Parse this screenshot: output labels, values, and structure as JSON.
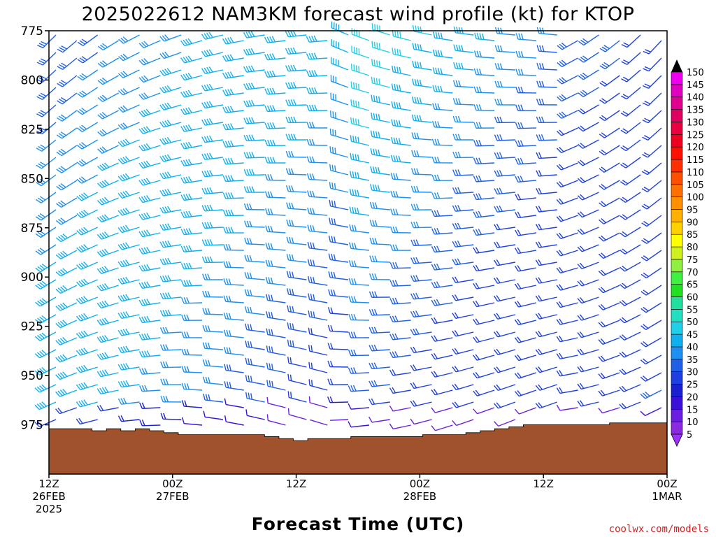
{
  "chart_data": {
    "type": "wind-barb profile",
    "title": "2025022612 NAM3KM forecast wind profile (kt) for KTOP",
    "xlabel": "Forecast Time (UTC)",
    "y_tick_labels": [
      "775",
      "800",
      "825",
      "850",
      "875",
      "900",
      "925",
      "950",
      "975"
    ],
    "ylim": [
      775,
      1000
    ],
    "y_axis": "pressure (hPa), increasing downward",
    "x_ticks": [
      {
        "hour": 0,
        "line1": "12Z",
        "line2": "26FEB",
        "line3": "2025"
      },
      {
        "hour": 12,
        "line1": "00Z",
        "line2": "27FEB",
        "line3": ""
      },
      {
        "hour": 24,
        "line1": "12Z",
        "line2": "",
        "line3": ""
      },
      {
        "hour": 36,
        "line1": "00Z",
        "line2": "28FEB",
        "line3": ""
      },
      {
        "hour": 48,
        "line1": "12Z",
        "line2": "",
        "line3": ""
      },
      {
        "hour": 60,
        "line1": "00Z",
        "line2": "1MAR",
        "line3": ""
      }
    ],
    "xlim_hours": [
      0,
      60
    ],
    "surface_pressure": [
      977,
      977,
      977,
      978,
      977,
      978,
      977,
      978,
      979,
      980,
      980,
      980,
      980,
      980,
      980,
      981,
      982,
      983,
      982,
      982,
      982,
      981,
      981,
      981,
      981,
      981,
      980,
      980,
      980,
      979,
      978,
      977,
      976,
      975,
      975,
      975,
      975,
      975,
      975,
      974,
      974,
      974,
      974
    ],
    "colorbar": {
      "ticks": [
        5,
        10,
        15,
        20,
        25,
        30,
        35,
        40,
        45,
        50,
        55,
        60,
        65,
        70,
        75,
        80,
        85,
        90,
        95,
        100,
        105,
        110,
        115,
        120,
        125,
        130,
        135,
        140,
        145,
        150
      ],
      "colors": [
        "#8a2be2",
        "#6a1fe0",
        "#3a10d8",
        "#1a20d0",
        "#1e40e0",
        "#2060e8",
        "#1e90f0",
        "#10b0f0",
        "#20d0e8",
        "#20e0c0",
        "#20e0a0",
        "#20e020",
        "#40f040",
        "#90f040",
        "#d0f020",
        "#ffff00",
        "#ffd000",
        "#ffb000",
        "#ff9000",
        "#ff7000",
        "#ff5000",
        "#ff3000",
        "#ff1000",
        "#f00020",
        "#e80040",
        "#e00060",
        "#e00090",
        "#e000c0",
        "#f000f0"
      ]
    },
    "colors": {
      "ground": "#a0522d",
      "text": "#000000"
    }
  },
  "credit": "coolwx.com/models"
}
